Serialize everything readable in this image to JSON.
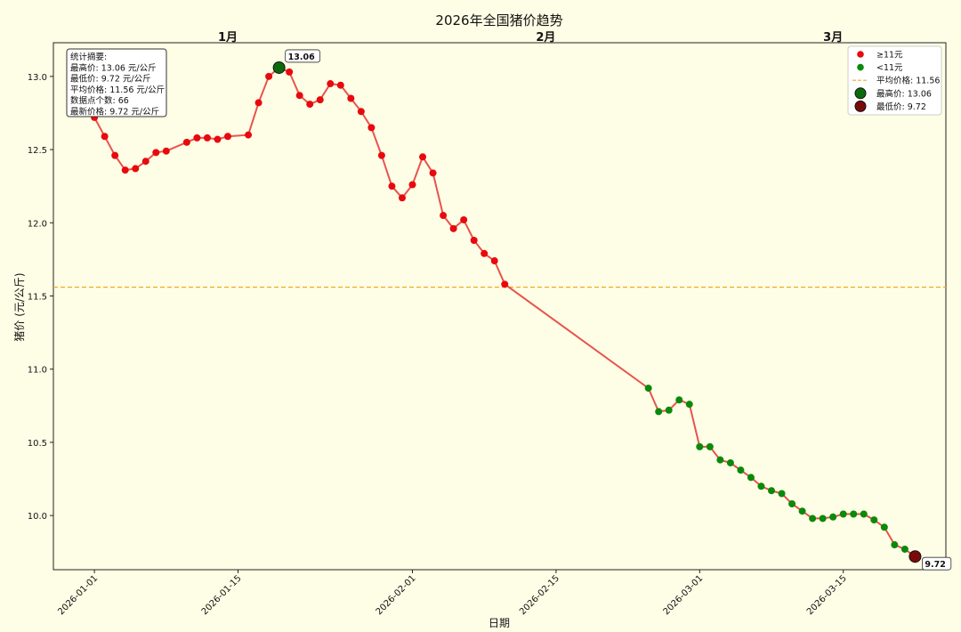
{
  "chart_data": {
    "type": "line",
    "title": "2026年全国猪价趋势",
    "xlabel": "日期",
    "ylabel": "猪价 (元/公斤)",
    "xlim": [
      "2025-12-28",
      "2026-03-25"
    ],
    "ylim": [
      9.63,
      13.23
    ],
    "grid": false,
    "legend_position": "top-right",
    "x_ticks": [
      "2026-01-01",
      "2026-01-15",
      "2026-02-01",
      "2026-02-15",
      "2026-03-01",
      "2026-03-15"
    ],
    "y_ticks": [
      10.0,
      10.5,
      11.0,
      11.5,
      12.0,
      12.5,
      13.0
    ],
    "month_labels": [
      {
        "label": "1月",
        "date": "2026-01-14"
      },
      {
        "label": "2月",
        "date": "2026-02-14"
      },
      {
        "label": "3月",
        "date": "2026-03-14"
      }
    ],
    "threshold": 11,
    "colors": {
      "line": "#e8534e",
      "above": "#e8090e",
      "below": "#0a8a0a",
      "avg_line": "#f5a623",
      "max_marker": "#0b6b0b",
      "min_marker": "#7a0a0a"
    },
    "average": 11.56,
    "max": {
      "date": "2026-01-19",
      "value": 13.06,
      "label": "13.06"
    },
    "min": {
      "date": "2026-03-22",
      "value": 9.72,
      "label": "9.72"
    },
    "series": [
      {
        "points": [
          [
            "2026-01-01",
            12.72
          ],
          [
            "2026-01-02",
            12.59
          ],
          [
            "2026-01-03",
            12.46
          ],
          [
            "2026-01-04",
            12.36
          ],
          [
            "2026-01-05",
            12.37
          ],
          [
            "2026-01-06",
            12.42
          ],
          [
            "2026-01-07",
            12.48
          ],
          [
            "2026-01-08",
            12.49
          ],
          [
            "2026-01-10",
            12.55
          ],
          [
            "2026-01-11",
            12.58
          ],
          [
            "2026-01-12",
            12.58
          ],
          [
            "2026-01-13",
            12.57
          ],
          [
            "2026-01-14",
            12.59
          ],
          [
            "2026-01-16",
            12.6
          ],
          [
            "2026-01-17",
            12.82
          ],
          [
            "2026-01-18",
            13.0
          ],
          [
            "2026-01-19",
            13.06
          ],
          [
            "2026-01-20",
            13.03
          ],
          [
            "2026-01-21",
            12.87
          ],
          [
            "2026-01-22",
            12.81
          ],
          [
            "2026-01-23",
            12.84
          ],
          [
            "2026-01-24",
            12.95
          ],
          [
            "2026-01-25",
            12.94
          ],
          [
            "2026-01-26",
            12.85
          ],
          [
            "2026-01-27",
            12.76
          ],
          [
            "2026-01-28",
            12.65
          ],
          [
            "2026-01-29",
            12.46
          ],
          [
            "2026-01-30",
            12.25
          ],
          [
            "2026-01-31",
            12.17
          ],
          [
            "2026-02-01",
            12.26
          ],
          [
            "2026-02-02",
            12.45
          ],
          [
            "2026-02-03",
            12.34
          ],
          [
            "2026-02-04",
            12.05
          ],
          [
            "2026-02-05",
            11.96
          ],
          [
            "2026-02-06",
            12.02
          ],
          [
            "2026-02-07",
            11.88
          ],
          [
            "2026-02-08",
            11.79
          ],
          [
            "2026-02-09",
            11.74
          ],
          [
            "2026-02-10",
            11.58
          ],
          [
            "2026-02-24",
            10.87
          ],
          [
            "2026-02-25",
            10.71
          ],
          [
            "2026-02-26",
            10.72
          ],
          [
            "2026-02-27",
            10.79
          ],
          [
            "2026-02-28",
            10.76
          ],
          [
            "2026-03-01",
            10.47
          ],
          [
            "2026-03-02",
            10.47
          ],
          [
            "2026-03-03",
            10.38
          ],
          [
            "2026-03-04",
            10.36
          ],
          [
            "2026-03-05",
            10.31
          ],
          [
            "2026-03-06",
            10.26
          ],
          [
            "2026-03-07",
            10.2
          ],
          [
            "2026-03-08",
            10.17
          ],
          [
            "2026-03-09",
            10.15
          ],
          [
            "2026-03-10",
            10.08
          ],
          [
            "2026-03-11",
            10.03
          ],
          [
            "2026-03-12",
            9.98
          ],
          [
            "2026-03-13",
            9.98
          ],
          [
            "2026-03-14",
            9.99
          ],
          [
            "2026-03-15",
            10.01
          ],
          [
            "2026-03-16",
            10.01
          ],
          [
            "2026-03-17",
            10.01
          ],
          [
            "2026-03-18",
            9.97
          ],
          [
            "2026-03-19",
            9.92
          ],
          [
            "2026-03-20",
            9.8
          ],
          [
            "2026-03-21",
            9.77
          ],
          [
            "2026-03-22",
            9.72
          ]
        ]
      }
    ],
    "legend": [
      {
        "label": "≥11元",
        "kind": "dot",
        "color": "#e8090e"
      },
      {
        "label": "<11元",
        "kind": "dot",
        "color": "#0a8a0a"
      },
      {
        "label": "平均价格: 11.56",
        "kind": "dash",
        "color": "#f5a623"
      },
      {
        "label": "最高价: 13.06",
        "kind": "bigdot",
        "color": "#0b6b0b"
      },
      {
        "label": "最低价: 9.72",
        "kind": "bigdot",
        "color": "#7a0a0a"
      }
    ],
    "summary": [
      "统计摘要:",
      "最高价: 13.06 元/公斤",
      "最低价: 9.72 元/公斤",
      "平均价格: 11.56 元/公斤",
      "数据点个数: 66",
      "最新价格: 9.72 元/公斤"
    ]
  }
}
